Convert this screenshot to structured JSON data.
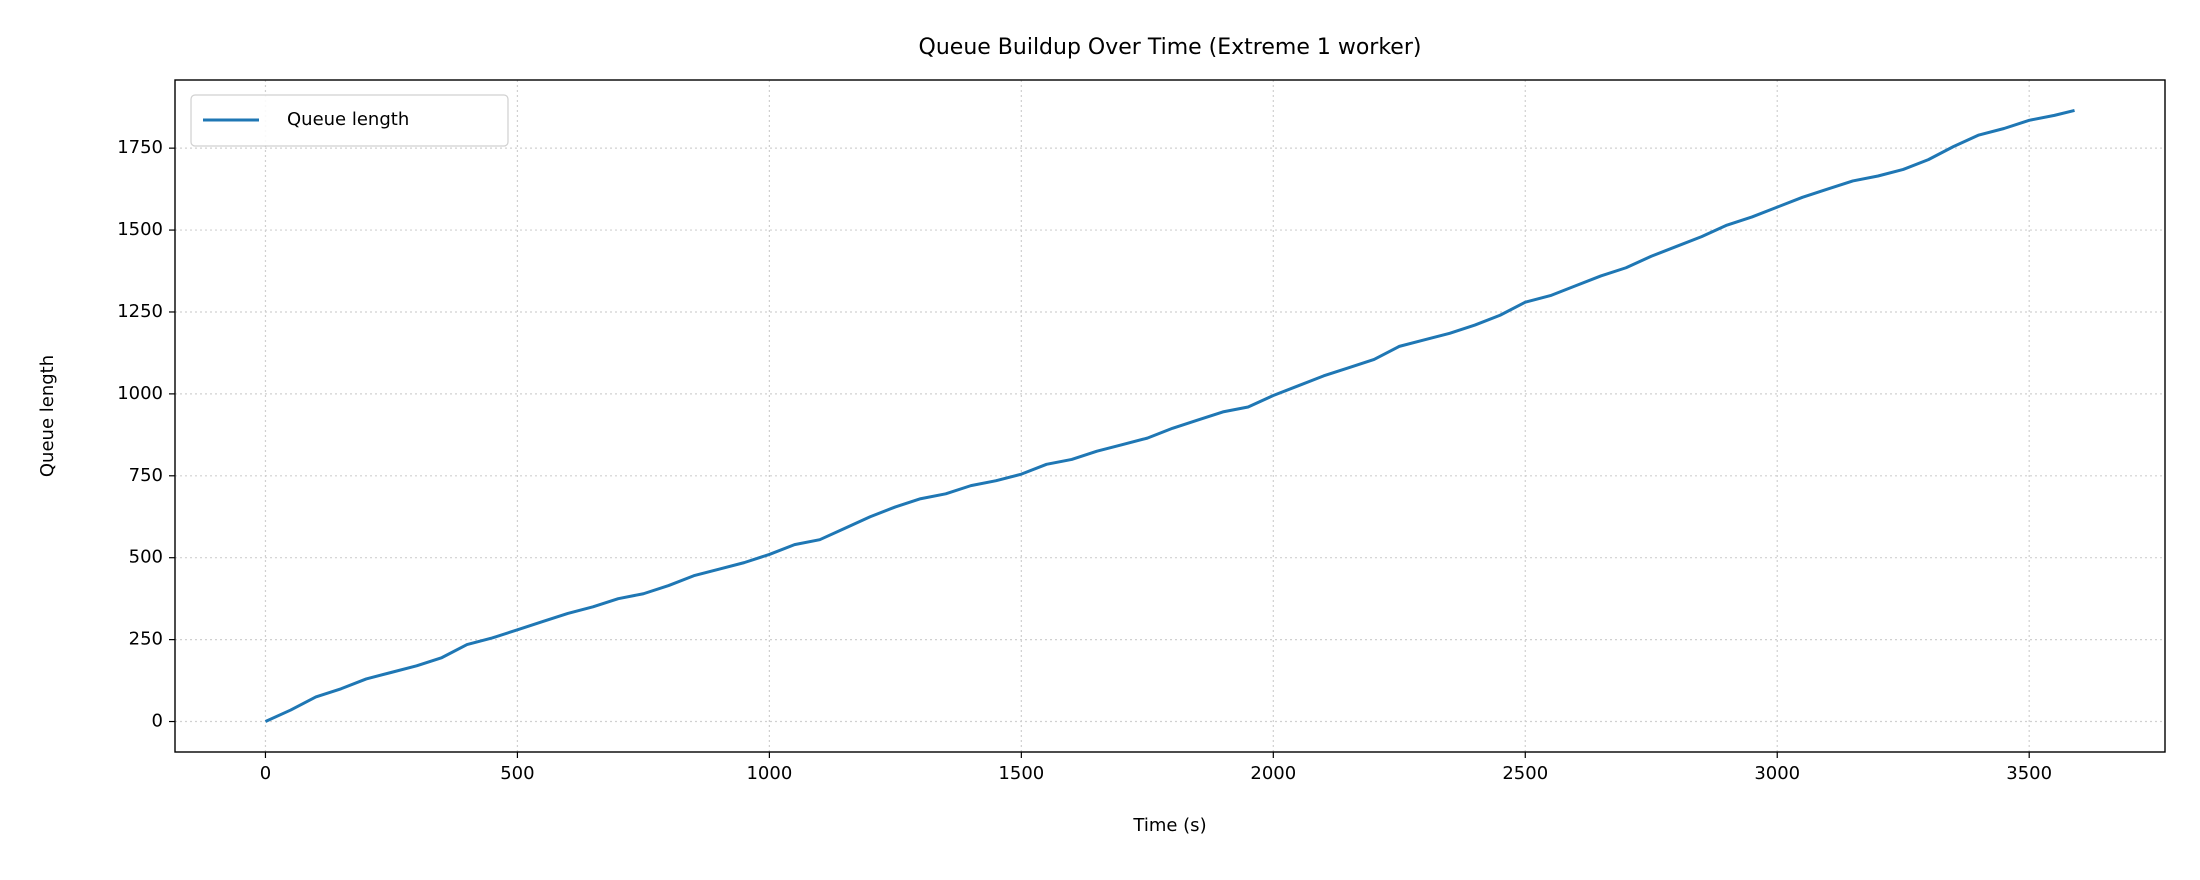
{
  "chart_data": {
    "type": "line",
    "title": "Queue Buildup Over Time (Extreme 1 worker)",
    "x_label": "Time (s)",
    "y_label": "Queue length",
    "x": [
      0,
      50,
      100,
      150,
      200,
      250,
      300,
      350,
      400,
      450,
      500,
      550,
      600,
      650,
      700,
      750,
      800,
      850,
      900,
      950,
      1000,
      1050,
      1100,
      1150,
      1200,
      1250,
      1300,
      1350,
      1400,
      1450,
      1500,
      1550,
      1600,
      1650,
      1700,
      1750,
      1800,
      1850,
      1900,
      1950,
      2000,
      2050,
      2100,
      2150,
      2200,
      2250,
      2300,
      2350,
      2400,
      2450,
      2500,
      2550,
      2600,
      2650,
      2700,
      2750,
      2800,
      2850,
      2900,
      2950,
      3000,
      3050,
      3100,
      3150,
      3200,
      3250,
      3300,
      3350,
      3400,
      3450,
      3500,
      3550,
      3590
    ],
    "series": [
      {
        "name": "Queue length",
        "color": "#1f77b4",
        "values": [
          0,
          35,
          75,
          100,
          130,
          150,
          170,
          195,
          235,
          255,
          280,
          305,
          330,
          350,
          375,
          390,
          415,
          445,
          465,
          485,
          510,
          540,
          555,
          590,
          625,
          655,
          680,
          695,
          720,
          735,
          755,
          785,
          800,
          825,
          845,
          865,
          895,
          920,
          945,
          960,
          995,
          1025,
          1055,
          1080,
          1105,
          1145,
          1165,
          1185,
          1210,
          1240,
          1280,
          1300,
          1330,
          1360,
          1385,
          1420,
          1450,
          1480,
          1515,
          1540,
          1570,
          1600,
          1625,
          1650,
          1665,
          1685,
          1715,
          1755,
          1790,
          1810,
          1835,
          1850,
          1865
        ]
      }
    ],
    "xlim": [
      -179.5,
      3769.5
    ],
    "ylim": [
      -93,
      1958
    ],
    "xticks": [
      0,
      500,
      1000,
      1500,
      2000,
      2500,
      3000,
      3500
    ],
    "yticks": [
      0,
      250,
      500,
      750,
      1000,
      1250,
      1500,
      1750
    ],
    "grid": true,
    "legend": "upper left"
  }
}
